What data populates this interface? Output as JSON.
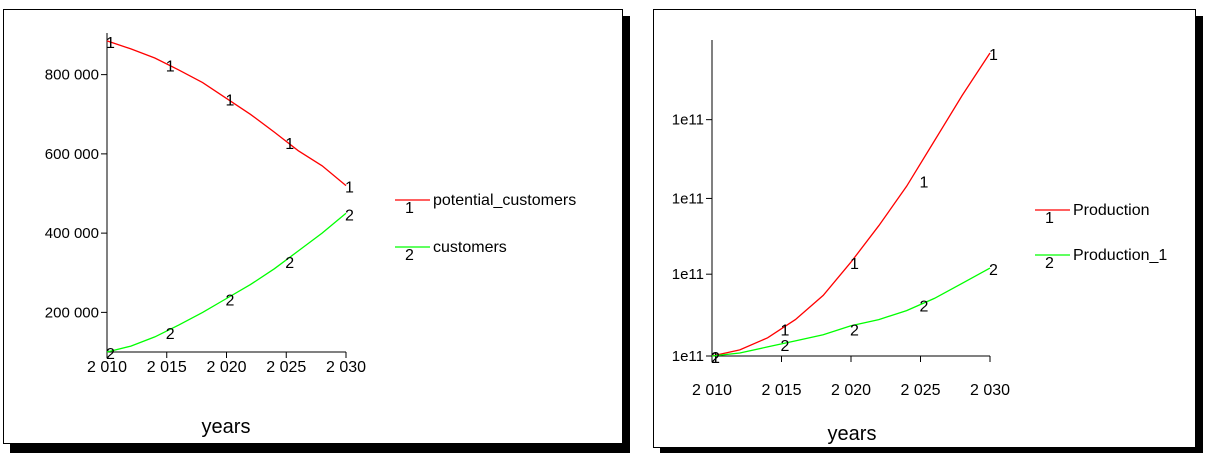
{
  "chart_data": [
    {
      "type": "line",
      "title": "",
      "xlabel": "years",
      "ylabel": "",
      "xlim": [
        2010,
        2030
      ],
      "ylim": [
        100000,
        900000
      ],
      "x_tick_labels": [
        "2 010",
        "2 015",
        "2 020",
        "2 025",
        "2 030"
      ],
      "x_ticks": [
        2010,
        2015,
        2020,
        2025,
        2030
      ],
      "y_tick_labels": [
        "200 000",
        "400 000",
        "600 000",
        "800 000"
      ],
      "y_ticks": [
        200000,
        400000,
        600000,
        800000
      ],
      "grid": false,
      "legend_position": "right",
      "series": [
        {
          "name": "potential_customers",
          "marker": "1",
          "color": "#ff0000",
          "x": [
            2010,
            2012,
            2014,
            2016,
            2018,
            2020,
            2022,
            2024,
            2026,
            2028,
            2030
          ],
          "y": [
            885000,
            865000,
            842000,
            812000,
            780000,
            740000,
            700000,
            655000,
            608000,
            570000,
            520000
          ],
          "marker_x": [
            2010,
            2015,
            2020,
            2025,
            2030
          ],
          "marker_y": [
            885000,
            825000,
            740000,
            630000,
            520000
          ]
        },
        {
          "name": "customers",
          "marker": "2",
          "color": "#00ff00",
          "x": [
            2010,
            2012,
            2014,
            2016,
            2018,
            2020,
            2022,
            2024,
            2026,
            2028,
            2030
          ],
          "y": [
            100000,
            115000,
            138000,
            168000,
            200000,
            235000,
            270000,
            310000,
            355000,
            400000,
            450000
          ],
          "marker_x": [
            2010,
            2015,
            2020,
            2025,
            2030
          ],
          "marker_y": [
            100000,
            150000,
            235000,
            330000,
            450000
          ]
        }
      ]
    },
    {
      "type": "line",
      "title": "",
      "xlabel": "years",
      "ylabel": "",
      "xlim": [
        2010,
        2030
      ],
      "ylim": [
        0,
        1
      ],
      "x_tick_labels": [
        "2 010",
        "2 015",
        "2 020",
        "2 025",
        "2 030"
      ],
      "x_ticks": [
        2010,
        2015,
        2020,
        2025,
        2030
      ],
      "y_tick_labels": [
        "1e11",
        "1e11",
        "1e11",
        "1e11"
      ],
      "y_tick_fractions": [
        0,
        0.27,
        0.52,
        0.78
      ],
      "grid": false,
      "legend_position": "right",
      "series": [
        {
          "name": "Production",
          "marker": "1",
          "color": "#ff0000",
          "x": [
            2010,
            2012,
            2014,
            2016,
            2018,
            2020,
            2022,
            2024,
            2026,
            2028,
            2030
          ],
          "y_fraction": [
            0.0,
            0.02,
            0.06,
            0.12,
            0.2,
            0.31,
            0.43,
            0.56,
            0.71,
            0.86,
            1.0
          ],
          "marker_x": [
            2010,
            2015,
            2020,
            2025,
            2030
          ],
          "marker_y_fraction": [
            0.0,
            0.09,
            0.31,
            0.58,
            1.0
          ]
        },
        {
          "name": "Production_1",
          "marker": "2",
          "color": "#00ff00",
          "x": [
            2010,
            2012,
            2014,
            2016,
            2018,
            2020,
            2022,
            2024,
            2026,
            2028,
            2030
          ],
          "y_fraction": [
            0.0,
            0.01,
            0.03,
            0.05,
            0.07,
            0.1,
            0.12,
            0.15,
            0.19,
            0.24,
            0.29
          ],
          "marker_x": [
            2010,
            2015,
            2020,
            2025,
            2030
          ],
          "marker_y_fraction": [
            0.0,
            0.04,
            0.09,
            0.17,
            0.29
          ]
        }
      ]
    }
  ]
}
